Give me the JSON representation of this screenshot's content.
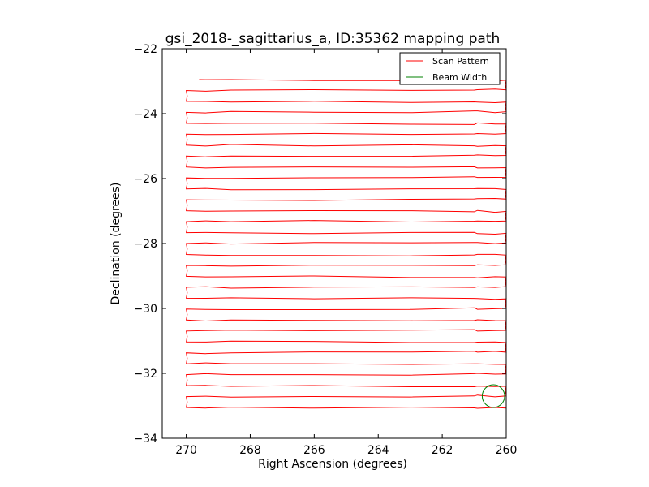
{
  "chart_data": {
    "type": "line",
    "title": "gsi_2018-_sagittarius_a, ID:35362 mapping path",
    "xlabel": "Right Ascension (degrees)",
    "ylabel": "Declination (degrees)",
    "xlim": [
      270.75,
      260
    ],
    "ylim": [
      -34,
      -22
    ],
    "x_inverted": true,
    "xticks": [
      270,
      268,
      266,
      264,
      262,
      260
    ],
    "yticks": [
      -22,
      -24,
      -26,
      -28,
      -30,
      -32,
      -34
    ],
    "xtick_labels": [
      "270",
      "268",
      "266",
      "264",
      "262",
      "260"
    ],
    "ytick_labels": [
      "−22",
      "−24",
      "−26",
      "−28",
      "−30",
      "−32",
      "−34"
    ],
    "grid": false,
    "legend": {
      "placement": "top-right"
    },
    "series": [
      {
        "name": "Scan Pattern",
        "kind": "raster-scan",
        "color": "#ff0000",
        "ra_start": 269.6,
        "ra_min": 270.0,
        "ra_max": 260.0,
        "dec_start": -22.95,
        "dec_end": -33.05,
        "row_spacing": 0.3367,
        "rows": 31
      },
      {
        "name": "Beam Width",
        "kind": "circle",
        "color": "#008000",
        "center": [
          260.4,
          -32.7
        ],
        "radius": 0.35
      }
    ]
  }
}
